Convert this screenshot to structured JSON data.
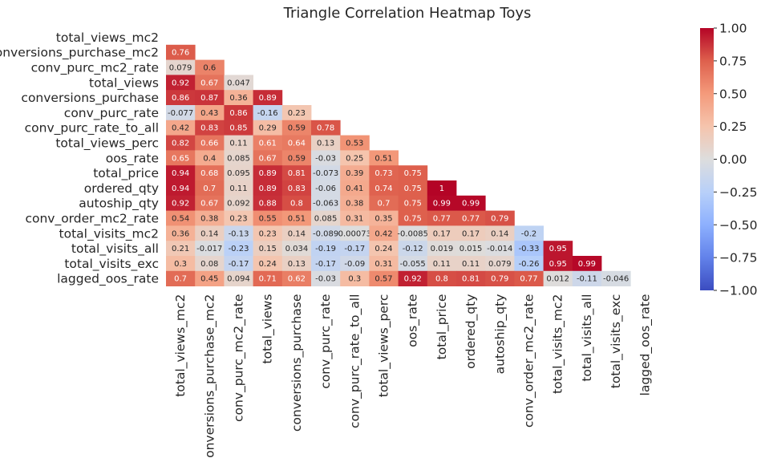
{
  "chart_data": {
    "type": "heatmap",
    "title": "Triangle Correlation Heatmap Toys",
    "mask": "upper-triangle-including-diagonal",
    "colormap": "coolwarm",
    "vmin": -1.0,
    "vmax": 1.0,
    "colorbar_ticks": [
      "1.00",
      "0.75",
      "0.50",
      "0.25",
      "0.00",
      "−0.25",
      "−0.50",
      "−0.75",
      "−1.00"
    ],
    "variables": [
      "total_views_mc2",
      "conversions_purchase_mc2",
      "conv_purc_mc2_rate",
      "total_views",
      "conversions_purchase",
      "conv_purc_rate",
      "conv_purc_rate_to_all",
      "total_views_perc",
      "oos_rate",
      "total_price",
      "ordered_qty",
      "autoship_qty",
      "conv_order_mc2_rate",
      "total_visits_mc2",
      "total_visits_all",
      "total_visits_exc",
      "lagged_oos_rate"
    ],
    "lower_triangle": [
      [],
      [
        "0.76"
      ],
      [
        "0.079",
        "0.6"
      ],
      [
        "0.92",
        "0.67",
        "0.047"
      ],
      [
        "0.86",
        "0.87",
        "0.36",
        "0.89"
      ],
      [
        "-0.077",
        "0.43",
        "0.86",
        "-0.16",
        "0.23"
      ],
      [
        "0.42",
        "0.83",
        "0.85",
        "0.29",
        "0.59",
        "0.78"
      ],
      [
        "0.82",
        "0.66",
        "0.11",
        "0.61",
        "0.64",
        "0.13",
        "0.53"
      ],
      [
        "0.65",
        "0.4",
        "0.085",
        "0.67",
        "0.59",
        "-0.03",
        "0.25",
        "0.51"
      ],
      [
        "0.94",
        "0.68",
        "0.095",
        "0.89",
        "0.81",
        "-0.073",
        "0.39",
        "0.73",
        "0.75"
      ],
      [
        "0.94",
        "0.7",
        "0.11",
        "0.89",
        "0.83",
        "-0.06",
        "0.41",
        "0.74",
        "0.75",
        "1"
      ],
      [
        "0.92",
        "0.67",
        "0.092",
        "0.88",
        "0.8",
        "-0.063",
        "0.38",
        "0.7",
        "0.75",
        "0.99",
        "0.99"
      ],
      [
        "0.54",
        "0.38",
        "0.23",
        "0.55",
        "0.51",
        "0.085",
        "0.31",
        "0.35",
        "0.75",
        "0.77",
        "0.77",
        "0.79"
      ],
      [
        "0.36",
        "0.14",
        "-0.13",
        "0.23",
        "0.14",
        "-0.089",
        "0.00073",
        "0.42",
        "-0.0085",
        "0.17",
        "0.17",
        "0.14",
        "-0.2"
      ],
      [
        "0.21",
        "-0.017",
        "-0.23",
        "0.15",
        "0.034",
        "-0.19",
        "-0.17",
        "0.24",
        "-0.12",
        "0.019",
        "0.015",
        "-0.014",
        "-0.33",
        "0.95"
      ],
      [
        "0.3",
        "0.08",
        "-0.17",
        "0.24",
        "0.13",
        "-0.17",
        "-0.09",
        "0.31",
        "-0.055",
        "0.11",
        "0.11",
        "0.079",
        "-0.26",
        "0.95",
        "0.99"
      ],
      [
        "0.7",
        "0.45",
        "0.094",
        "0.71",
        "0.62",
        "-0.03",
        "0.3",
        "0.57",
        "0.92",
        "0.8",
        "0.81",
        "0.79",
        "0.77",
        "0.012",
        "-0.11",
        "-0.046"
      ]
    ]
  }
}
